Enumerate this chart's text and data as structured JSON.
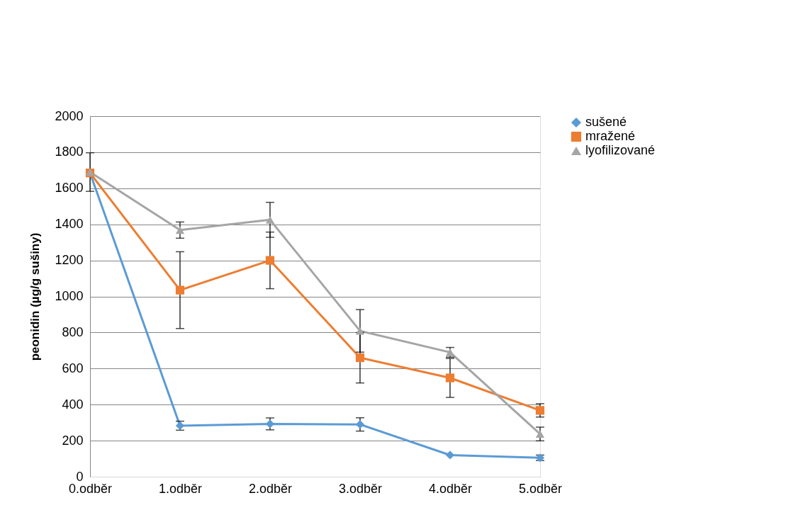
{
  "chart_data": {
    "type": "line",
    "ylabel": "peonidin (µg/g sušiny)",
    "categories": [
      "0.odběr",
      "1.odběr",
      "2.odběr",
      "3.odběr",
      "4.odběr",
      "5.odběr"
    ],
    "series": [
      {
        "name": "sušené",
        "color": "#5b9bd5",
        "marker": "diamond",
        "values": [
          1685,
          283,
          293,
          290,
          120,
          105
        ],
        "errors": [
          null,
          25,
          33,
          37,
          null,
          15
        ]
      },
      {
        "name": "mražené",
        "color": "#ed7d31",
        "marker": "square",
        "values": [
          1685,
          1035,
          1200,
          660,
          548,
          368
        ],
        "errors": [
          null,
          213,
          157,
          140,
          108,
          37
        ]
      },
      {
        "name": "lyofilizované",
        "color": "#a5a5a5",
        "marker": "triangle",
        "values": [
          1690,
          1368,
          1425,
          809,
          690,
          237
        ],
        "errors": [
          107,
          45,
          97,
          118,
          27,
          38
        ]
      }
    ],
    "ylim": [
      0,
      2000
    ],
    "yticks": [
      0,
      200,
      400,
      600,
      800,
      1000,
      1200,
      1400,
      1600,
      1800,
      2000
    ],
    "grid": "y",
    "legend": "right",
    "line_style": "solid"
  }
}
